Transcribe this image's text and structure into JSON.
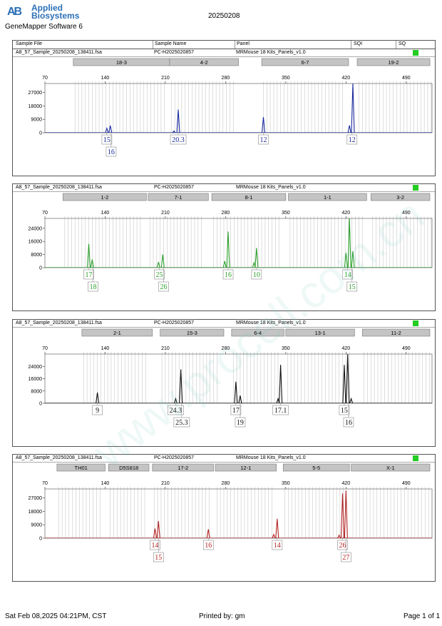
{
  "header": {
    "logo_mark": "AB",
    "brand_line1": "Applied",
    "brand_line2": "Biosystems",
    "software": "GeneMapper Software 6",
    "date": "20250208"
  },
  "table_header": {
    "c1": "Sample File",
    "c2": "Sample Name",
    "c3": "Panel",
    "c4": "SQI",
    "c5": "SQ"
  },
  "colors": {
    "blue": "#1b2a9e",
    "green": "#2ca02c",
    "black": "#111111",
    "red": "#b22222",
    "status": "#22cc22"
  },
  "chart_data": [
    {
      "type": "line",
      "sample_file": "A8_57_Sample_20250208_138411.fsa",
      "sample_name": "PC-H2025020857",
      "panel": "MRMouse 18 Kits_Panels_v1.0",
      "color": "#1b2a9e",
      "xlim": [
        70,
        520
      ],
      "xticks": [
        70,
        140,
        210,
        280,
        350,
        420,
        490
      ],
      "yticks": [
        0,
        9000,
        18000,
        27000
      ],
      "ymax": 33000,
      "markers": [
        {
          "name": "18-3",
          "from": 103,
          "to": 215
        },
        {
          "name": "4-2",
          "from": 215,
          "to": 295
        },
        {
          "name": "6-7",
          "from": 322,
          "to": 423
        },
        {
          "name": "19-2",
          "from": 433,
          "to": 533
        }
      ],
      "peaks": [
        {
          "x": 142,
          "y": 3000
        },
        {
          "x": 146,
          "y": 4800
        },
        {
          "x": 220,
          "y": 1200
        },
        {
          "x": 225,
          "y": 15500
        },
        {
          "x": 324,
          "y": 10500
        },
        {
          "x": 424,
          "y": 5000
        },
        {
          "x": 428,
          "y": 33000
        }
      ],
      "labels": [
        {
          "text": "15",
          "x": 142,
          "row": 1
        },
        {
          "text": "16",
          "x": 147,
          "row": 2
        },
        {
          "text": "20.3",
          "x": 225,
          "row": 1
        },
        {
          "text": "12",
          "x": 324,
          "row": 1
        },
        {
          "text": "12",
          "x": 427,
          "row": 1
        }
      ]
    },
    {
      "type": "line",
      "sample_file": "A8_57_Sample_20250208_138411.fsa",
      "sample_name": "PC-H2025020857",
      "panel": "MRMouse 18 Kits_Panels_v1.0",
      "color": "#2ca02c",
      "xlim": [
        70,
        520
      ],
      "xticks": [
        70,
        140,
        210,
        280,
        350,
        420,
        490
      ],
      "yticks": [
        0,
        8000,
        16000,
        24000
      ],
      "ymax": 30000,
      "markers": [
        {
          "name": "1-2",
          "from": 91,
          "to": 188
        },
        {
          "name": "7-1",
          "from": 190,
          "to": 260
        },
        {
          "name": "8-1",
          "from": 264,
          "to": 350
        },
        {
          "name": "1-1",
          "from": 353,
          "to": 444
        },
        {
          "name": "3-2",
          "from": 449,
          "to": 571
        }
      ],
      "peaks": [
        {
          "x": 121,
          "y": 14500
        },
        {
          "x": 125,
          "y": 5000
        },
        {
          "x": 202,
          "y": 3500
        },
        {
          "x": 207,
          "y": 8000
        },
        {
          "x": 283,
          "y": 22000
        },
        {
          "x": 279,
          "y": 4000
        },
        {
          "x": 316,
          "y": 12000
        },
        {
          "x": 313,
          "y": 3000
        },
        {
          "x": 420,
          "y": 9000
        },
        {
          "x": 424,
          "y": 30000
        },
        {
          "x": 428,
          "y": 10000
        }
      ],
      "labels": [
        {
          "text": "17",
          "x": 121,
          "row": 1
        },
        {
          "text": "18",
          "x": 126,
          "row": 2
        },
        {
          "text": "25",
          "x": 203,
          "row": 1
        },
        {
          "text": "26",
          "x": 208,
          "row": 2
        },
        {
          "text": "16",
          "x": 283,
          "row": 1
        },
        {
          "text": "10",
          "x": 316,
          "row": 1
        },
        {
          "text": "14",
          "x": 422,
          "row": 1
        },
        {
          "text": "15",
          "x": 427,
          "row": 2
        }
      ]
    },
    {
      "type": "line",
      "sample_file": "A8_57_Sample_20250208_138411.fsa",
      "sample_name": "PC-H2025020857",
      "panel": "MRMouse 18 Kits_Panels_v1.0",
      "color": "#111111",
      "xlim": [
        70,
        520
      ],
      "xticks": [
        70,
        140,
        210,
        280,
        350,
        420,
        490
      ],
      "yticks": [
        0,
        8000,
        16000,
        24000
      ],
      "ymax": 32000,
      "markers": [
        {
          "name": "2-1",
          "from": 113,
          "to": 195
        },
        {
          "name": "15-3",
          "from": 204,
          "to": 278
        },
        {
          "name": "6-4",
          "from": 287,
          "to": 348
        },
        {
          "name": "13-1",
          "from": 350,
          "to": 430
        },
        {
          "name": "11-2",
          "from": 439,
          "to": 568
        }
      ],
      "peaks": [
        {
          "x": 131,
          "y": 7000
        },
        {
          "x": 222,
          "y": 3000
        },
        {
          "x": 228,
          "y": 22000
        },
        {
          "x": 292,
          "y": 14000
        },
        {
          "x": 297,
          "y": 5000
        },
        {
          "x": 344,
          "y": 25000
        },
        {
          "x": 341,
          "y": 3000
        },
        {
          "x": 418,
          "y": 25000
        },
        {
          "x": 422,
          "y": 32000
        },
        {
          "x": 426,
          "y": 3000
        }
      ],
      "labels": [
        {
          "text": "9",
          "x": 131,
          "row": 1
        },
        {
          "text": "24.3",
          "x": 222,
          "row": 1
        },
        {
          "text": "25.3",
          "x": 229,
          "row": 2
        },
        {
          "text": "17",
          "x": 292,
          "row": 1
        },
        {
          "text": "19",
          "x": 297,
          "row": 2
        },
        {
          "text": "17.1",
          "x": 344,
          "row": 1
        },
        {
          "text": "15",
          "x": 418,
          "row": 1
        },
        {
          "text": "16",
          "x": 423,
          "row": 2
        }
      ]
    },
    {
      "type": "line",
      "sample_file": "A8_57_Sample_20250208_138411.fsa",
      "sample_name": "PC-H2025020857",
      "panel": "MRMouse 18 Kits_Panels_v1.0",
      "color": "#b22222",
      "xlim": [
        70,
        520
      ],
      "xticks": [
        70,
        140,
        210,
        280,
        350,
        420,
        490
      ],
      "yticks": [
        0,
        9000,
        18000,
        27000
      ],
      "ymax": 33000,
      "markers": [
        {
          "name": "TH01",
          "from": 84,
          "to": 140
        },
        {
          "name": "D5S818",
          "from": 144,
          "to": 191
        },
        {
          "name": "17-2",
          "from": 195,
          "to": 266
        },
        {
          "name": "12-1",
          "from": 268,
          "to": 339
        },
        {
          "name": "5-5",
          "from": 347,
          "to": 424
        },
        {
          "name": "X-1",
          "from": 426,
          "to": 546
        }
      ],
      "peaks": [
        {
          "x": 198,
          "y": 6500
        },
        {
          "x": 202,
          "y": 11500
        },
        {
          "x": 260,
          "y": 6000
        },
        {
          "x": 340,
          "y": 13000
        },
        {
          "x": 336,
          "y": 2500
        },
        {
          "x": 416,
          "y": 30000
        },
        {
          "x": 420,
          "y": 32000
        },
        {
          "x": 412,
          "y": 2000
        }
      ],
      "labels": [
        {
          "text": "14",
          "x": 198,
          "row": 1
        },
        {
          "text": "15",
          "x": 202,
          "row": 2
        },
        {
          "text": "16",
          "x": 260,
          "row": 1
        },
        {
          "text": "14",
          "x": 340,
          "row": 1
        },
        {
          "text": "26",
          "x": 416,
          "row": 1
        },
        {
          "text": "27",
          "x": 420,
          "row": 2
        }
      ]
    }
  ],
  "footer": {
    "left": "Sat Feb 08,2025 04:21PM, CST",
    "center": "Printed by: gm",
    "right": "Page 1 of 1"
  },
  "watermark": "www.procell.com.cn"
}
